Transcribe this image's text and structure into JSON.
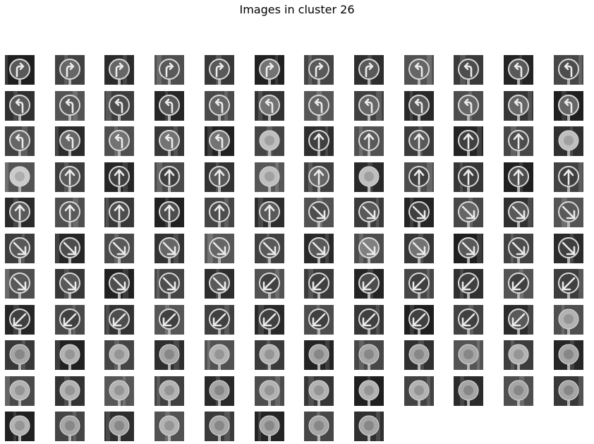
{
  "title": "Images in cluster 26",
  "grid": {
    "columns": 12,
    "rows": 11,
    "image_count": 128
  },
  "images": [
    {
      "sign": "turn-right-arrow",
      "bright": 0.45
    },
    {
      "sign": "turn-right-arrow",
      "bright": 0.5
    },
    {
      "sign": "turn-right-arrow",
      "bright": 0.5
    },
    {
      "sign": "turn-right-arrow",
      "bright": 0.45
    },
    {
      "sign": "turn-right-arrow",
      "bright": 0.45
    },
    {
      "sign": "turn-right-arrow",
      "bright": 0.55
    },
    {
      "sign": "turn-right-arrow",
      "bright": 0.45
    },
    {
      "sign": "turn-right-arrow",
      "bright": 0.45
    },
    {
      "sign": "turn-left-arrow",
      "bright": 0.5
    },
    {
      "sign": "turn-left-arrow",
      "bright": 0.4
    },
    {
      "sign": "turn-left-arrow",
      "bright": 0.45
    },
    {
      "sign": "turn-left-arrow",
      "bright": 0.4
    },
    {
      "sign": "turn-left-arrow",
      "bright": 0.45
    },
    {
      "sign": "turn-left-arrow",
      "bright": 0.45
    },
    {
      "sign": "turn-left-arrow",
      "bright": 0.4
    },
    {
      "sign": "turn-left-arrow",
      "bright": 0.45
    },
    {
      "sign": "turn-left-arrow",
      "bright": 0.5
    },
    {
      "sign": "turn-left-arrow",
      "bright": 0.55
    },
    {
      "sign": "turn-left-arrow",
      "bright": 0.5
    },
    {
      "sign": "turn-left-arrow",
      "bright": 0.5
    },
    {
      "sign": "turn-left-arrow",
      "bright": 0.45
    },
    {
      "sign": "turn-left-arrow",
      "bright": 0.5
    },
    {
      "sign": "turn-left-arrow",
      "bright": 0.5
    },
    {
      "sign": "turn-left-arrow",
      "bright": 0.5
    },
    {
      "sign": "turn-left-arrow",
      "bright": 0.5
    },
    {
      "sign": "turn-left-arrow",
      "bright": 0.5
    },
    {
      "sign": "turn-left-arrow",
      "bright": 0.55
    },
    {
      "sign": "turn-left-arrow",
      "bright": 0.55
    },
    {
      "sign": "turn-left-arrow",
      "bright": 0.55
    },
    {
      "sign": "blurred-disc",
      "bright": 0.6
    },
    {
      "sign": "up-arrow",
      "bright": 0.35
    },
    {
      "sign": "up-arrow",
      "bright": 0.45
    },
    {
      "sign": "up-arrow",
      "bright": 0.45
    },
    {
      "sign": "up-arrow",
      "bright": 0.35
    },
    {
      "sign": "up-arrow",
      "bright": 0.4
    },
    {
      "sign": "blurred-disc",
      "bright": 0.6
    },
    {
      "sign": "blurred-disc",
      "bright": 0.65
    },
    {
      "sign": "up-arrow",
      "bright": 0.45
    },
    {
      "sign": "up-arrow",
      "bright": 0.35
    },
    {
      "sign": "up-arrow",
      "bright": 0.35
    },
    {
      "sign": "up-arrow",
      "bright": 0.45
    },
    {
      "sign": "blurred-disc",
      "bright": 0.6
    },
    {
      "sign": "up-arrow",
      "bright": 0.5
    },
    {
      "sign": "blurred-disc",
      "bright": 0.6
    },
    {
      "sign": "up-arrow",
      "bright": 0.35
    },
    {
      "sign": "up-arrow",
      "bright": 0.35
    },
    {
      "sign": "up-arrow",
      "bright": 0.4
    },
    {
      "sign": "up-arrow",
      "bright": 0.35
    },
    {
      "sign": "up-arrow",
      "bright": 0.45
    },
    {
      "sign": "up-arrow",
      "bright": 0.45
    },
    {
      "sign": "up-arrow",
      "bright": 0.4
    },
    {
      "sign": "up-arrow",
      "bright": 0.4
    },
    {
      "sign": "up-arrow",
      "bright": 0.4
    },
    {
      "sign": "up-arrow",
      "bright": 0.45
    },
    {
      "sign": "down-right-arrow",
      "bright": 0.4
    },
    {
      "sign": "down-right-arrow",
      "bright": 0.45
    },
    {
      "sign": "down-right-arrow",
      "bright": 0.35
    },
    {
      "sign": "down-right-arrow",
      "bright": 0.5
    },
    {
      "sign": "down-right-arrow",
      "bright": 0.45
    },
    {
      "sign": "down-right-arrow",
      "bright": 0.45
    },
    {
      "sign": "down-right-arrow",
      "bright": 0.45
    },
    {
      "sign": "down-right-arrow",
      "bright": 0.4
    },
    {
      "sign": "down-right-arrow",
      "bright": 0.45
    },
    {
      "sign": "down-right-arrow",
      "bright": 0.5
    },
    {
      "sign": "down-right-arrow",
      "bright": 0.5
    },
    {
      "sign": "down-right-arrow",
      "bright": 0.45
    },
    {
      "sign": "down-right-arrow",
      "bright": 0.45
    },
    {
      "sign": "down-right-arrow",
      "bright": 0.6
    },
    {
      "sign": "down-right-arrow",
      "bright": 0.55
    },
    {
      "sign": "down-right-arrow",
      "bright": 0.45
    },
    {
      "sign": "down-right-arrow",
      "bright": 0.4
    },
    {
      "sign": "down-right-arrow",
      "bright": 0.35
    },
    {
      "sign": "down-right-arrow",
      "bright": 0.45
    },
    {
      "sign": "down-right-arrow",
      "bright": 0.45
    },
    {
      "sign": "down-right-arrow",
      "bright": 0.4
    },
    {
      "sign": "down-right-arrow",
      "bright": 0.4
    },
    {
      "sign": "down-right-arrow",
      "bright": 0.45
    },
    {
      "sign": "down-left-arrow",
      "bright": 0.35
    },
    {
      "sign": "down-left-arrow",
      "bright": 0.35
    },
    {
      "sign": "down-left-arrow",
      "bright": 0.4
    },
    {
      "sign": "down-left-arrow",
      "bright": 0.35
    },
    {
      "sign": "down-left-arrow",
      "bright": 0.35
    },
    {
      "sign": "down-left-arrow",
      "bright": 0.35
    },
    {
      "sign": "down-left-arrow",
      "bright": 0.35
    },
    {
      "sign": "down-left-arrow",
      "bright": 0.35
    },
    {
      "sign": "down-left-arrow",
      "bright": 0.35
    },
    {
      "sign": "down-left-arrow",
      "bright": 0.4
    },
    {
      "sign": "down-left-arrow",
      "bright": 0.35
    },
    {
      "sign": "down-left-arrow",
      "bright": 0.35
    },
    {
      "sign": "down-left-arrow",
      "bright": 0.35
    },
    {
      "sign": "down-left-arrow",
      "bright": 0.35
    },
    {
      "sign": "down-left-arrow",
      "bright": 0.35
    },
    {
      "sign": "down-left-arrow",
      "bright": 0.35
    },
    {
      "sign": "down-left-arrow",
      "bright": 0.35
    },
    {
      "sign": "down-left-arrow",
      "bright": 0.45
    },
    {
      "sign": "blurred-disc",
      "bright": 0.55
    },
    {
      "sign": "blurred-disc",
      "bright": 0.5
    },
    {
      "sign": "blurred-disc",
      "bright": 0.55
    },
    {
      "sign": "blurred-disc",
      "bright": 0.55
    },
    {
      "sign": "blurred-disc",
      "bright": 0.5
    },
    {
      "sign": "blurred-disc",
      "bright": 0.55
    },
    {
      "sign": "blurred-disc",
      "bright": 0.55
    },
    {
      "sign": "blurred-disc",
      "bright": 0.5
    },
    {
      "sign": "blurred-disc",
      "bright": 0.5
    },
    {
      "sign": "blurred-disc",
      "bright": 0.5
    },
    {
      "sign": "blurred-disc",
      "bright": 0.5
    },
    {
      "sign": "blurred-disc",
      "bright": 0.55
    },
    {
      "sign": "blurred-disc",
      "bright": 0.5
    },
    {
      "sign": "blurred-disc",
      "bright": 0.55
    },
    {
      "sign": "blurred-disc",
      "bright": 0.55
    },
    {
      "sign": "blurred-disc",
      "bright": 0.55
    },
    {
      "sign": "blurred-disc",
      "bright": 0.55
    },
    {
      "sign": "blurred-disc",
      "bright": 0.5
    },
    {
      "sign": "blurred-disc",
      "bright": 0.55
    },
    {
      "sign": "blurred-disc",
      "bright": 0.55
    },
    {
      "sign": "blurred-disc",
      "bright": 0.55
    },
    {
      "sign": "blurred-disc",
      "bright": 0.55
    },
    {
      "sign": "blurred-disc",
      "bright": 0.5
    },
    {
      "sign": "blurred-disc",
      "bright": 0.5
    },
    {
      "sign": "blurred-disc",
      "bright": 0.5
    },
    {
      "sign": "blurred-disc",
      "bright": 0.55
    },
    {
      "sign": "blurred-disc",
      "bright": 0.5
    },
    {
      "sign": "blurred-disc",
      "bright": 0.5
    },
    {
      "sign": "blurred-disc",
      "bright": 0.55
    },
    {
      "sign": "blurred-disc",
      "bright": 0.5
    },
    {
      "sign": "blurred-disc",
      "bright": 0.5
    },
    {
      "sign": "blurred-disc",
      "bright": 0.5
    },
    {
      "sign": "blurred-disc",
      "bright": 0.5
    }
  ]
}
